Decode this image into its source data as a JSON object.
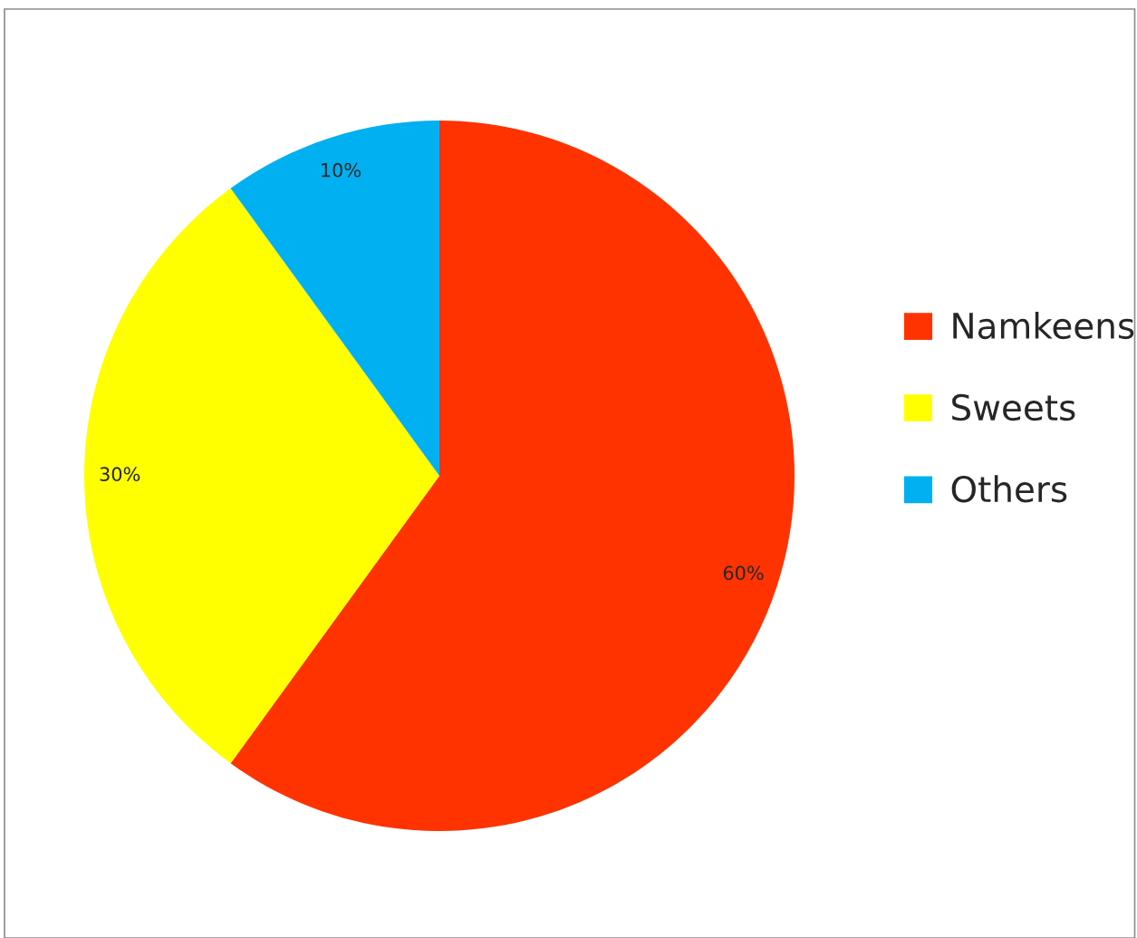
{
  "chart_data": {
    "type": "pie",
    "categories": [
      "Namkeens",
      "Sweets",
      "Others"
    ],
    "values": [
      60,
      30,
      10
    ],
    "colors": [
      "#ff3300",
      "#ffff00",
      "#00b0f0"
    ],
    "value_labels": [
      "60%",
      "30%",
      "10%"
    ],
    "legend": "right"
  }
}
